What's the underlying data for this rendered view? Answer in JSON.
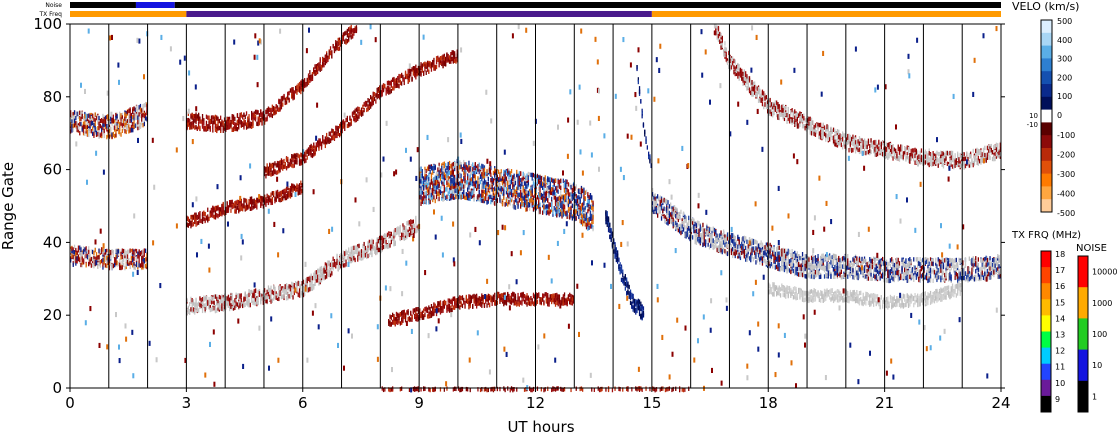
{
  "chart_data": {
    "type": "heatmap",
    "xlabel": "UT hours",
    "ylabel": "Range Gate",
    "xlim": [
      0,
      24
    ],
    "ylim": [
      0,
      100
    ],
    "x_ticks": [
      "0",
      "3",
      "6",
      "9",
      "12",
      "15",
      "18",
      "21",
      "24"
    ],
    "y_ticks": [
      "0",
      "20",
      "40",
      "60",
      "80",
      "100"
    ],
    "vertical_lines_every_hours": 1,
    "top_bars": [
      {
        "label": "Noise",
        "segments": [
          {
            "from": 0,
            "to": 1.7,
            "color": "#000000"
          },
          {
            "from": 1.7,
            "to": 2.7,
            "color": "#1414e0"
          },
          {
            "from": 2.7,
            "to": 24,
            "color": "#000000"
          }
        ]
      },
      {
        "label": "TX Freq",
        "segments": [
          {
            "from": 0,
            "to": 3,
            "color": "#ff9a00"
          },
          {
            "from": 3,
            "to": 15,
            "color": "#4a1a8c"
          },
          {
            "from": 15,
            "to": 24,
            "color": "#ff9a00"
          }
        ]
      }
    ],
    "velocity_scale": {
      "title": "VELO (km/s)",
      "top_ticks": [
        "500",
        "400",
        "300",
        "200",
        "100",
        "0"
      ],
      "zero_ticks": [
        "10",
        "-10"
      ],
      "bottom_ticks": [
        "-100",
        "-200",
        "-300",
        "-400",
        "-500"
      ],
      "colors": [
        "#dcefff",
        "#a8d6f5",
        "#5aaee6",
        "#2d7fd1",
        "#1450b0",
        "#0a2a8c",
        "#000f5a",
        "#ffffff",
        "#5a0000",
        "#8c0a0a",
        "#b82a0a",
        "#e0500a",
        "#ff7a00",
        "#ffa640",
        "#ffcc99"
      ]
    },
    "freq_scale": {
      "title": "TX FRQ (MHz)",
      "ticks": [
        "18",
        "17",
        "16",
        "15",
        "14",
        "13",
        "12",
        "11",
        "10",
        "9"
      ],
      "colors": [
        "#ff0000",
        "#ff4400",
        "#ff8800",
        "#ffbb00",
        "#ffff00",
        "#00ff44",
        "#00ccff",
        "#2244ff",
        "#6a1a9a",
        "#000000"
      ]
    },
    "noise_scale": {
      "title": "NOISE",
      "ticks": [
        "10000",
        "1000",
        "100",
        "10",
        "1"
      ],
      "colors": [
        "#ff0000",
        "#ffaa00",
        "#22cc22",
        "#1414e0",
        "#000000"
      ]
    },
    "series": [
      {
        "type": "band",
        "gates": [
          [
            0,
            37
          ],
          [
            1,
            36
          ],
          [
            2,
            36
          ]
        ],
        "width": 5,
        "color_mix": "red-blue-gray"
      },
      {
        "type": "band",
        "gates": [
          [
            0,
            74
          ],
          [
            1,
            72
          ],
          [
            2,
            76
          ]
        ],
        "width": 6,
        "color_mix": "red-blue-gray"
      },
      {
        "type": "band",
        "gates": [
          [
            3,
            23
          ],
          [
            4,
            24
          ],
          [
            5,
            26
          ],
          [
            6,
            28
          ],
          [
            7,
            36
          ],
          [
            8,
            40
          ],
          [
            9,
            46
          ]
        ],
        "width": 4,
        "color_mix": "gray-red"
      },
      {
        "type": "band",
        "gates": [
          [
            3,
            74
          ],
          [
            4,
            73
          ],
          [
            5,
            75
          ]
        ],
        "width": 4,
        "color_mix": "red"
      },
      {
        "type": "band",
        "gates": [
          [
            5,
            60
          ],
          [
            6,
            64
          ],
          [
            7,
            72
          ],
          [
            8,
            82
          ],
          [
            9,
            88
          ],
          [
            10,
            92
          ]
        ],
        "width": 3,
        "color_mix": "red"
      },
      {
        "type": "band",
        "gates": [
          [
            5,
            75
          ],
          [
            6,
            84
          ],
          [
            6.8,
            94
          ],
          [
            7.4,
            100
          ]
        ],
        "width": 3,
        "color_mix": "red"
      },
      {
        "type": "band",
        "gates": [
          [
            3,
            46
          ],
          [
            4,
            50
          ],
          [
            5,
            52
          ],
          [
            6,
            56
          ]
        ],
        "width": 3,
        "color_mix": "red"
      },
      {
        "type": "band",
        "gates": [
          [
            9,
            56
          ],
          [
            10,
            58
          ],
          [
            11,
            56
          ],
          [
            12,
            54
          ],
          [
            13,
            52
          ],
          [
            13.5,
            48
          ]
        ],
        "width": 10,
        "color_mix": "mixed"
      },
      {
        "type": "band",
        "gates": [
          [
            13.8,
            48
          ],
          [
            14.0,
            40
          ],
          [
            14.2,
            32
          ],
          [
            14.5,
            24
          ],
          [
            14.8,
            21
          ]
        ],
        "width": 4,
        "color_mix": "blue"
      },
      {
        "type": "band",
        "gates": [
          [
            14.6,
            88
          ],
          [
            14.8,
            70
          ],
          [
            15.0,
            60
          ]
        ],
        "width": 2,
        "color_mix": "blue"
      },
      {
        "type": "band",
        "gates": [
          [
            8.2,
            19
          ],
          [
            9,
            21
          ],
          [
            10,
            24
          ],
          [
            11,
            25
          ],
          [
            12,
            25
          ],
          [
            13,
            25
          ]
        ],
        "width": 3,
        "color_mix": "red"
      },
      {
        "type": "band",
        "gates": [
          [
            15,
            52
          ],
          [
            16,
            44
          ],
          [
            17,
            40
          ],
          [
            18,
            37
          ],
          [
            19,
            34
          ],
          [
            20,
            34
          ],
          [
            21,
            33
          ],
          [
            22,
            33
          ],
          [
            23,
            33
          ],
          [
            24,
            34
          ]
        ],
        "width": 6,
        "color_mix": "gray-blue-red"
      },
      {
        "type": "band",
        "gates": [
          [
            16.6,
            100
          ],
          [
            17,
            90
          ],
          [
            18,
            78
          ],
          [
            19,
            73
          ],
          [
            20,
            68
          ],
          [
            21,
            66
          ],
          [
            22,
            64
          ],
          [
            23,
            63
          ],
          [
            24,
            66
          ]
        ],
        "width": 4,
        "color_mix": "gray-red"
      },
      {
        "type": "band",
        "gates": [
          [
            18,
            28
          ],
          [
            19,
            26
          ],
          [
            20,
            26
          ],
          [
            21,
            24
          ],
          [
            22,
            25
          ],
          [
            23,
            28
          ]
        ],
        "width": 3,
        "color_mix": "gray"
      },
      {
        "type": "band",
        "gates": [
          [
            8,
            0
          ],
          [
            10,
            0
          ],
          [
            12,
            0
          ],
          [
            14,
            0
          ],
          [
            16,
            0
          ]
        ],
        "width": 1,
        "color_mix": "red"
      }
    ]
  }
}
